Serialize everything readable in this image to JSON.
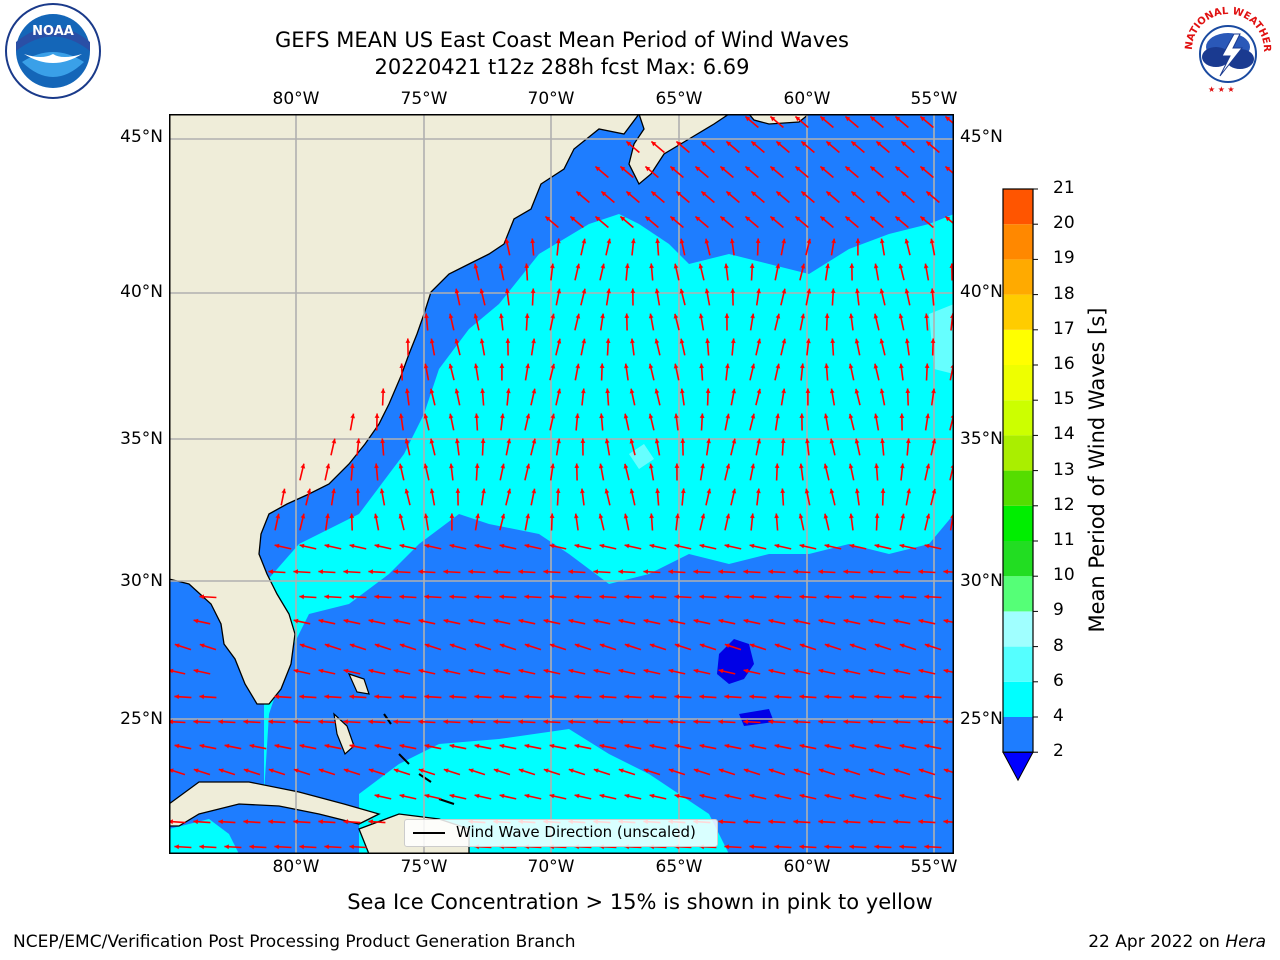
{
  "title": {
    "line1": "GEFS MEAN US East Coast Mean Period of Wind Waves",
    "line2": "20220421 t12z 288h fcst   Max: 6.69"
  },
  "map": {
    "lon_labels": [
      "80°W",
      "75°W",
      "70°W",
      "65°W",
      "60°W",
      "55°W"
    ],
    "lat_labels": [
      "45°N",
      "40°N",
      "35°N",
      "30°N",
      "25°N"
    ],
    "legend_label": "Wind Wave Direction (unscaled)",
    "colors": {
      "land": "#efedd9",
      "water_low": "#1e7dff",
      "water_mid": "#00ffff",
      "water_deep_low": "#0000e6",
      "water_light": "#66ffff",
      "arrow": "#ff0000",
      "grid": "#b0b0b0"
    }
  },
  "colorbar": {
    "title": "Mean Period of Wind Waves [s]",
    "levels": [
      "2",
      "4",
      "6",
      "8",
      "9",
      "10",
      "11",
      "12",
      "13",
      "14",
      "15",
      "16",
      "17",
      "18",
      "19",
      "20",
      "21"
    ],
    "colors": [
      "#1e7dff",
      "#00ffff",
      "#55ffff",
      "#a0ffff",
      "#55ff77",
      "#22dd22",
      "#00ee00",
      "#55dd00",
      "#aaee00",
      "#ccff00",
      "#eeff00",
      "#ffff00",
      "#ffcc00",
      "#ffaa00",
      "#ff8800",
      "#ff5500",
      "#ff2a00",
      "#ff0000"
    ]
  },
  "sea_ice_note": "Sea Ice Concentration > 15% is shown in pink to yellow",
  "footer": {
    "left": "NCEP/EMC/Verification Post Processing Product Generation Branch",
    "right_date": "22 Apr 2022 on ",
    "right_host": "Hera"
  },
  "logos": {
    "noaa": "NOAA",
    "nws_text": "NATIONAL WEATHER SERVICE"
  }
}
